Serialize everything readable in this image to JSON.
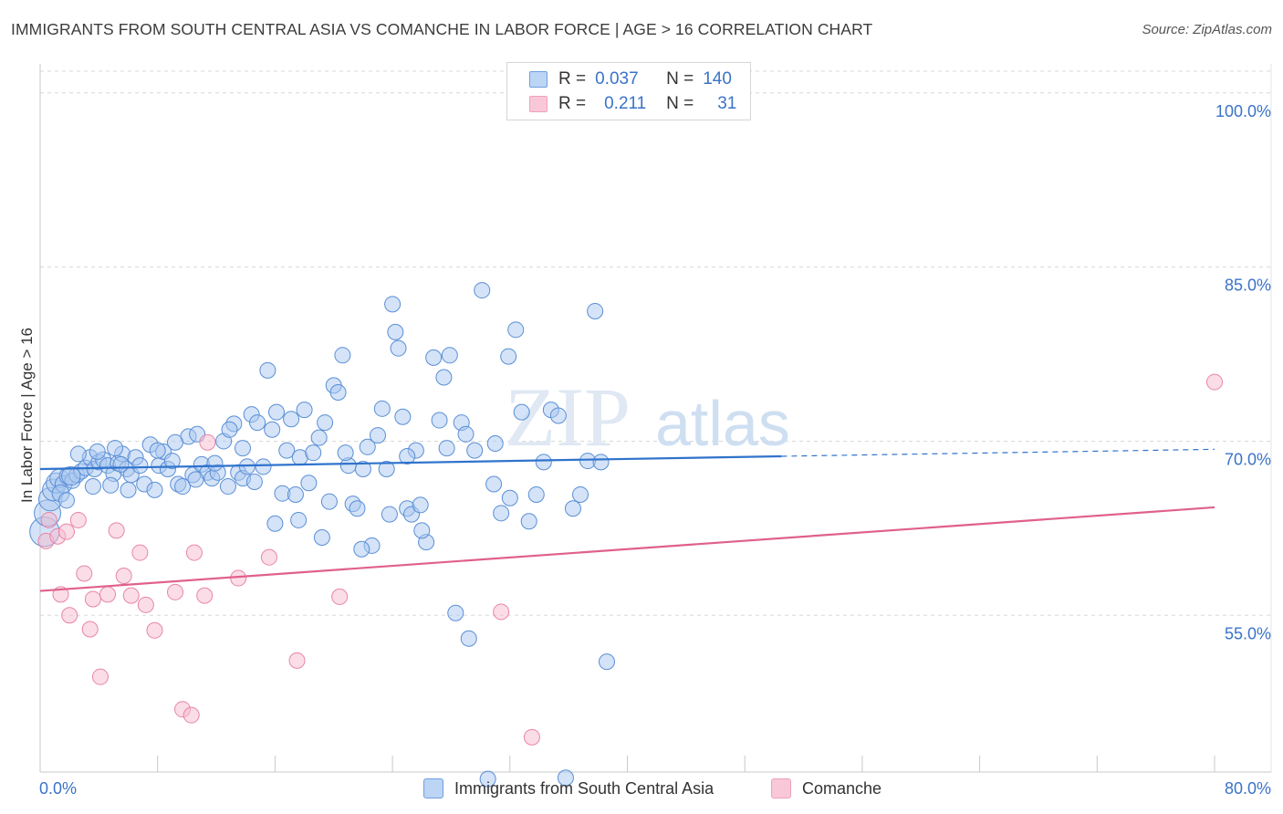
{
  "header": {
    "title": "IMMIGRANTS FROM SOUTH CENTRAL ASIA VS COMANCHE IN LABOR FORCE | AGE > 16 CORRELATION CHART",
    "source": "Source: ZipAtlas.com"
  },
  "legend": {
    "rows": [
      {
        "r_label": "R =",
        "r_value": "0.037",
        "n_label": "N =",
        "n_value": "140"
      },
      {
        "r_label": "R =",
        "r_value": "0.211",
        "n_label": "N =",
        "n_value": "31"
      }
    ]
  },
  "watermark": {
    "zip": "ZIP",
    "atlas": "atlas"
  },
  "colors": {
    "blue_fill": "#a9c8f0",
    "blue_stroke": "#5a8fd6",
    "blue_line": "#2f73cc",
    "pink_fill": "#f7bcd0",
    "pink_stroke": "#e885a6",
    "pink_line": "#e0608d",
    "tick_text": "#3a73c8",
    "grid": "#d8d8d8"
  },
  "chart_data": {
    "type": "scatter",
    "title": "IMMIGRANTS FROM SOUTH CENTRAL ASIA VS COMANCHE IN LABOR FORCE | AGE > 16 CORRELATION CHART",
    "xlabel": "",
    "ylabel": "In Labor Force | Age > 16",
    "xlim": [
      0,
      80
    ],
    "ylim": [
      41.5,
      102.5
    ],
    "x_tick_labels": [
      "0.0%",
      "80.0%"
    ],
    "y_ticks": [
      55,
      70,
      85,
      100
    ],
    "y_tick_labels": [
      "55.0%",
      "70.0%",
      "85.0%",
      "100.0%"
    ],
    "grid": true,
    "legend_position": "top-center",
    "series": [
      {
        "name": "Immigrants from South Central Asia",
        "color": "#a9c8f0",
        "r": 0.037,
        "n": 140,
        "trend": {
          "x0": 0,
          "y0": 67.6,
          "x1": 50.5,
          "y1": 68.7,
          "dashed_to_x": 80,
          "dashed_to_y": 69.3
        },
        "points": [
          [
            0.3,
            62.2,
            1.9
          ],
          [
            0.5,
            63.8,
            1.7
          ],
          [
            0.7,
            65.0,
            1.5
          ],
          [
            0.9,
            65.8,
            1.4
          ],
          [
            1.1,
            66.4,
            1.3
          ],
          [
            1.3,
            66.8,
            1.2
          ],
          [
            1.6,
            66.3,
            1.1
          ],
          [
            1.9,
            67.0,
            1.1
          ],
          [
            2.2,
            66.6,
            1.0
          ],
          [
            2.5,
            67.1,
            1.0
          ],
          [
            2.8,
            67.4,
            1.0
          ],
          [
            3.1,
            67.7,
            1.0
          ],
          [
            3.4,
            68.6,
            1.0
          ],
          [
            3.7,
            67.6,
            1.0
          ],
          [
            4.0,
            68.2,
            1.0
          ],
          [
            4.3,
            68.4,
            1.0
          ],
          [
            4.6,
            67.9,
            1.0
          ],
          [
            5.0,
            67.2,
            1.0
          ],
          [
            5.3,
            68.1,
            1.0
          ],
          [
            5.6,
            68.9,
            1.0
          ],
          [
            5.9,
            67.6,
            1.0
          ],
          [
            6.2,
            67.1,
            1.0
          ],
          [
            6.5,
            68.6,
            1.0
          ],
          [
            6.8,
            67.9,
            1.0
          ],
          [
            7.1,
            66.3,
            1.0
          ],
          [
            7.5,
            69.7,
            1.0
          ],
          [
            7.8,
            65.8,
            1.0
          ],
          [
            8.1,
            67.9,
            1.0
          ],
          [
            8.4,
            69.1,
            1.0
          ],
          [
            8.7,
            67.6,
            1.0
          ],
          [
            9.0,
            68.3,
            1.0
          ],
          [
            9.4,
            66.3,
            1.0
          ],
          [
            9.7,
            66.1,
            1.0
          ],
          [
            10.1,
            70.4,
            1.0
          ],
          [
            10.4,
            67.1,
            1.0
          ],
          [
            10.7,
            70.6,
            1.0
          ],
          [
            11.0,
            68.0,
            1.0
          ],
          [
            11.4,
            67.3,
            1.0
          ],
          [
            11.7,
            66.8,
            1.0
          ],
          [
            12.1,
            67.3,
            1.0
          ],
          [
            12.5,
            70.0,
            1.0
          ],
          [
            12.8,
            66.1,
            1.0
          ],
          [
            13.2,
            71.5,
            1.0
          ],
          [
            13.5,
            67.3,
            1.0
          ],
          [
            13.8,
            66.8,
            1.0
          ],
          [
            14.1,
            67.8,
            1.0
          ],
          [
            14.4,
            72.3,
            1.0
          ],
          [
            14.8,
            71.6,
            1.0
          ],
          [
            15.2,
            67.8,
            1.0
          ],
          [
            15.5,
            76.1,
            1.0
          ],
          [
            15.8,
            71.0,
            1.0
          ],
          [
            16.1,
            72.5,
            1.0
          ],
          [
            16.5,
            65.5,
            1.0
          ],
          [
            16.8,
            69.2,
            1.0
          ],
          [
            17.1,
            71.9,
            1.0
          ],
          [
            17.4,
            65.4,
            1.0
          ],
          [
            17.7,
            68.6,
            1.0
          ],
          [
            18.0,
            72.7,
            1.0
          ],
          [
            18.3,
            66.4,
            1.0
          ],
          [
            18.6,
            69.0,
            1.0
          ],
          [
            19.0,
            70.3,
            1.0
          ],
          [
            19.4,
            71.6,
            1.0
          ],
          [
            19.7,
            64.8,
            1.0
          ],
          [
            20.0,
            74.8,
            1.0
          ],
          [
            20.3,
            74.2,
            1.0
          ],
          [
            20.6,
            77.4,
            1.0
          ],
          [
            21.0,
            67.9,
            1.0
          ],
          [
            21.3,
            64.6,
            1.0
          ],
          [
            21.6,
            64.2,
            1.0
          ],
          [
            22.0,
            67.6,
            1.0
          ],
          [
            22.3,
            69.5,
            1.0
          ],
          [
            22.6,
            61.0,
            1.0
          ],
          [
            23.0,
            70.5,
            1.0
          ],
          [
            23.3,
            72.8,
            1.0
          ],
          [
            23.6,
            67.6,
            1.0
          ],
          [
            24.0,
            81.8,
            1.0
          ],
          [
            24.2,
            79.4,
            1.0
          ],
          [
            24.4,
            78.0,
            1.0
          ],
          [
            24.7,
            72.1,
            1.0
          ],
          [
            25.0,
            64.2,
            1.0
          ],
          [
            25.3,
            63.7,
            1.0
          ],
          [
            25.6,
            69.2,
            1.0
          ],
          [
            25.9,
            64.5,
            1.0
          ],
          [
            26.3,
            61.3,
            1.0
          ],
          [
            26.8,
            77.2,
            1.0
          ],
          [
            27.2,
            71.8,
            1.0
          ],
          [
            27.5,
            75.5,
            1.0
          ],
          [
            27.9,
            77.4,
            1.0
          ],
          [
            28.3,
            55.2,
            1.0
          ],
          [
            28.7,
            71.6,
            1.0
          ],
          [
            29.2,
            53.0,
            1.0
          ],
          [
            29.6,
            69.2,
            1.0
          ],
          [
            30.1,
            83.0,
            1.0
          ],
          [
            30.5,
            40.9,
            1.0
          ],
          [
            31.0,
            69.8,
            1.0
          ],
          [
            31.4,
            63.8,
            1.0
          ],
          [
            31.9,
            77.3,
            1.0
          ],
          [
            32.4,
            79.6,
            1.0
          ],
          [
            32.8,
            72.5,
            1.0
          ],
          [
            33.3,
            63.1,
            1.0
          ],
          [
            33.8,
            65.4,
            1.0
          ],
          [
            34.3,
            68.2,
            1.0
          ],
          [
            34.8,
            72.7,
            1.0
          ],
          [
            35.3,
            72.2,
            1.0
          ],
          [
            35.8,
            41.0,
            1.0
          ],
          [
            36.3,
            64.2,
            1.0
          ],
          [
            36.8,
            65.4,
            1.0
          ],
          [
            37.3,
            68.3,
            1.0
          ],
          [
            37.8,
            81.2,
            1.0
          ],
          [
            38.2,
            68.2,
            1.0
          ],
          [
            38.6,
            51.0,
            1.0
          ],
          [
            2.1,
            67.0,
            1.2
          ],
          [
            3.6,
            66.1,
            1.0
          ],
          [
            4.8,
            66.2,
            1.0
          ],
          [
            6.0,
            65.8,
            1.0
          ],
          [
            1.4,
            65.5,
            1.1
          ],
          [
            2.6,
            68.9,
            1.0
          ],
          [
            3.9,
            69.1,
            1.0
          ],
          [
            5.1,
            69.4,
            1.0
          ],
          [
            9.2,
            69.9,
            1.0
          ],
          [
            10.6,
            66.7,
            1.0
          ],
          [
            11.9,
            68.1,
            1.0
          ],
          [
            12.9,
            71.0,
            1.0
          ],
          [
            14.6,
            66.5,
            1.0
          ],
          [
            16.0,
            62.9,
            1.0
          ],
          [
            17.6,
            63.2,
            1.0
          ],
          [
            19.2,
            61.7,
            1.0
          ],
          [
            20.8,
            69.0,
            1.0
          ],
          [
            21.9,
            60.7,
            1.0
          ],
          [
            23.8,
            63.7,
            1.0
          ],
          [
            27.7,
            69.4,
            1.0
          ],
          [
            29.0,
            70.6,
            1.0
          ],
          [
            30.9,
            66.3,
            1.0
          ],
          [
            32.0,
            65.1,
            1.0
          ],
          [
            26.0,
            62.3,
            1.0
          ],
          [
            25.0,
            68.7,
            1.0
          ],
          [
            13.8,
            69.4,
            1.0
          ],
          [
            8.0,
            69.2,
            1.0
          ],
          [
            5.5,
            68.0,
            1.0
          ],
          [
            1.8,
            64.9,
            1.0
          ]
        ]
      },
      {
        "name": "Comanche",
        "color": "#f7bcd0",
        "r": 0.211,
        "n": 31,
        "trend": {
          "x0": 0,
          "y0": 57.1,
          "x1": 80,
          "y1": 64.3
        },
        "points": [
          [
            0.4,
            61.4
          ],
          [
            0.6,
            63.2
          ],
          [
            1.2,
            61.8
          ],
          [
            1.4,
            56.8
          ],
          [
            1.8,
            62.2
          ],
          [
            2.0,
            55.0
          ],
          [
            2.6,
            63.2
          ],
          [
            3.0,
            58.6
          ],
          [
            3.4,
            53.8
          ],
          [
            3.6,
            56.4
          ],
          [
            4.1,
            49.7
          ],
          [
            4.6,
            56.8
          ],
          [
            5.2,
            62.3
          ],
          [
            5.7,
            58.4
          ],
          [
            6.2,
            56.7
          ],
          [
            6.8,
            60.4
          ],
          [
            7.2,
            55.9
          ],
          [
            7.8,
            53.7
          ],
          [
            9.2,
            57.0
          ],
          [
            9.7,
            46.9
          ],
          [
            10.3,
            46.4
          ],
          [
            10.5,
            60.4
          ],
          [
            11.2,
            56.7
          ],
          [
            11.4,
            69.9
          ],
          [
            13.5,
            58.2
          ],
          [
            15.6,
            60.0
          ],
          [
            17.5,
            51.1
          ],
          [
            20.4,
            56.6
          ],
          [
            31.4,
            55.3
          ],
          [
            33.5,
            44.5
          ],
          [
            80.0,
            75.1
          ]
        ]
      }
    ]
  }
}
